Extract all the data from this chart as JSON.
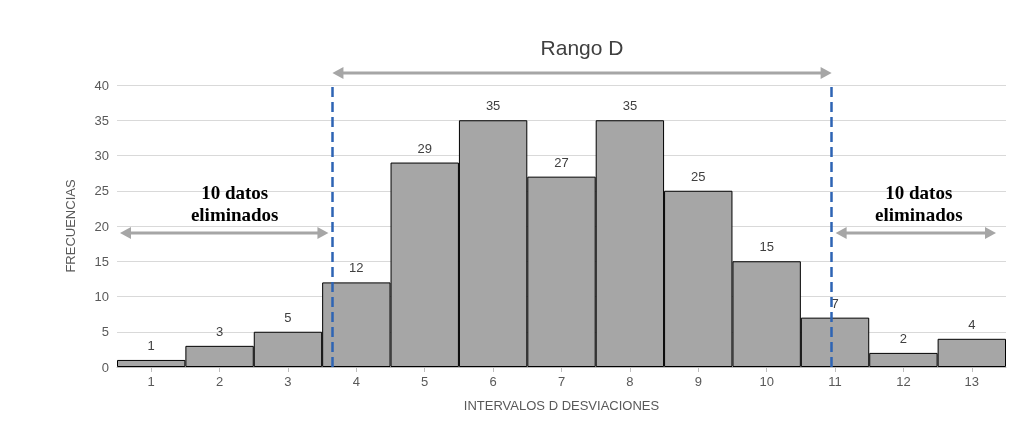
{
  "chart_data": {
    "type": "bar",
    "xlabel": "INTERVALOS D DESVIACIONES",
    "ylabel": "FRECUENCIAS",
    "x": [
      1,
      2,
      3,
      4,
      5,
      6,
      7,
      8,
      9,
      10,
      11,
      12,
      13
    ],
    "values": [
      1,
      3,
      5,
      12,
      29,
      35,
      27,
      35,
      25,
      15,
      7,
      2,
      4
    ],
    "color": "#a6a6a6",
    "data_labels": true,
    "xlim": [
      0.5,
      13.5
    ],
    "xticks": [
      1,
      2,
      3,
      4,
      5,
      6,
      7,
      8,
      9,
      10,
      11,
      12,
      13
    ],
    "ylim": [
      0,
      40
    ],
    "yticks": [
      0,
      5,
      10,
      15,
      20,
      25,
      30,
      35,
      40
    ],
    "grid": "y",
    "ref_lines": [
      {
        "axis": "x",
        "value": 3.65,
        "color": "#2e64b4",
        "line_style": "dashed"
      },
      {
        "axis": "x",
        "value": 10.95,
        "color": "#2e64b4",
        "line_style": "dashed"
      }
    ],
    "annotations": [
      "Rango D",
      "10 datos eliminados",
      "10 datos eliminados"
    ]
  }
}
